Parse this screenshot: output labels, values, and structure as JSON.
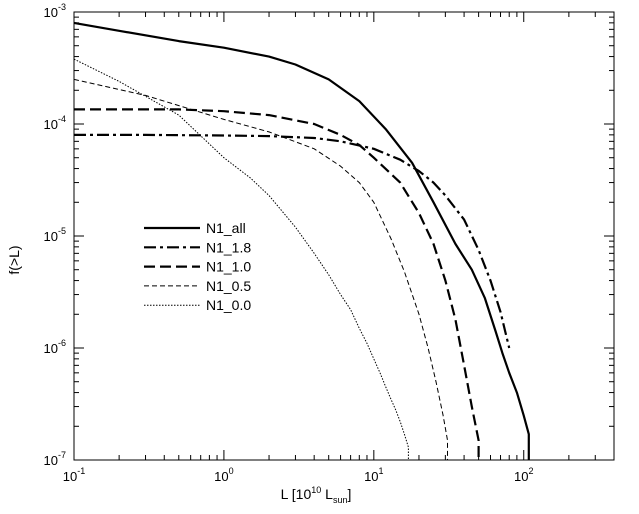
{
  "chart_data": {
    "type": "line",
    "xscale": "log",
    "yscale": "log",
    "xlim": [
      0.1,
      400
    ],
    "ylim": [
      1e-07,
      0.001
    ],
    "xlabel": {
      "main": "L [10",
      "sup": "10",
      "mid": " L",
      "sub": "sun",
      "end": "]"
    },
    "ylabel": "f(>L)",
    "x_ticks": [
      {
        "base": "10",
        "exp": "-1",
        "value": 0.1
      },
      {
        "base": "10",
        "exp": "0",
        "value": 1
      },
      {
        "base": "10",
        "exp": "1",
        "value": 10
      },
      {
        "base": "10",
        "exp": "2",
        "value": 100
      }
    ],
    "y_ticks": [
      {
        "base": "10",
        "exp": "-3",
        "value": 0.001
      },
      {
        "base": "10",
        "exp": "-4",
        "value": 0.0001
      },
      {
        "base": "10",
        "exp": "-5",
        "value": 1e-05
      },
      {
        "base": "10",
        "exp": "-6",
        "value": 1e-06
      },
      {
        "base": "10",
        "exp": "-7",
        "value": 1e-07
      }
    ],
    "grid": false,
    "legend_position": "center-left",
    "series": [
      {
        "name": "N1_all",
        "style": "solid-thick",
        "x": [
          0.1,
          0.2,
          0.5,
          1,
          2,
          3,
          5,
          8,
          12,
          18,
          25,
          35,
          45,
          55,
          65,
          72,
          80,
          90,
          100,
          108,
          108
        ],
        "y": [
          0.0008,
          0.00068,
          0.00055,
          0.00048,
          0.0004,
          0.00034,
          0.00025,
          0.00016,
          9e-05,
          4.5e-05,
          2e-05,
          8.5e-06,
          5e-06,
          2.8e-06,
          1.4e-06,
          9e-07,
          6e-07,
          4e-07,
          2.5e-07,
          1.7e-07,
          1e-07
        ]
      },
      {
        "name": "N1_1.8",
        "style": "dash-dot-thick",
        "x": [
          0.1,
          0.3,
          1,
          2,
          4,
          6,
          10,
          15,
          20,
          25,
          30,
          40,
          50,
          60,
          70,
          80
        ],
        "y": [
          8e-05,
          8e-05,
          7.9e-05,
          7.8e-05,
          7.5e-05,
          7e-05,
          6e-05,
          4.8e-05,
          3.8e-05,
          3e-05,
          2.3e-05,
          1.4e-05,
          7.5e-06,
          4e-06,
          2.1e-06,
          1e-06
        ]
      },
      {
        "name": "N1_1.0",
        "style": "dash-thick",
        "x": [
          0.1,
          0.5,
          1,
          2,
          4,
          6,
          8,
          10,
          15,
          20,
          25,
          30,
          35,
          40,
          45,
          50,
          50
        ],
        "y": [
          0.000135,
          0.000135,
          0.00013,
          0.00012,
          0.0001,
          8e-05,
          6.5e-05,
          5e-05,
          3e-05,
          1.6e-05,
          8.5e-06,
          4e-06,
          1.8e-06,
          7e-07,
          3e-07,
          1.5e-07,
          1e-07
        ]
      },
      {
        "name": "N1_0.5",
        "style": "dash-thin",
        "x": [
          0.1,
          0.3,
          1,
          2,
          4,
          6,
          8,
          10,
          13,
          16,
          20,
          23,
          26,
          29,
          31,
          31
        ],
        "y": [
          0.00025,
          0.00018,
          0.00011,
          8.5e-05,
          6e-05,
          4.2e-05,
          3e-05,
          2e-05,
          9.5e-06,
          4.8e-06,
          2e-06,
          1e-06,
          5e-07,
          2.5e-07,
          1.5e-07,
          1e-07
        ]
      },
      {
        "name": "N1_0.0",
        "style": "dotted-thin",
        "x": [
          0.1,
          0.2,
          0.5,
          1,
          1.5,
          2,
          3,
          4,
          5,
          6,
          7,
          8,
          9,
          10,
          11,
          12,
          13,
          14,
          15,
          16,
          17,
          17
        ],
        "y": [
          0.00038,
          0.00024,
          0.00012,
          5e-05,
          3.3e-05,
          2.3e-05,
          1.2e-05,
          7e-06,
          4.5e-06,
          3e-06,
          2.2e-06,
          1.5e-06,
          1.1e-06,
          8e-07,
          6e-07,
          4.5e-07,
          3.5e-07,
          2.8e-07,
          2.2e-07,
          1.7e-07,
          1.3e-07,
          1e-07
        ]
      }
    ]
  }
}
